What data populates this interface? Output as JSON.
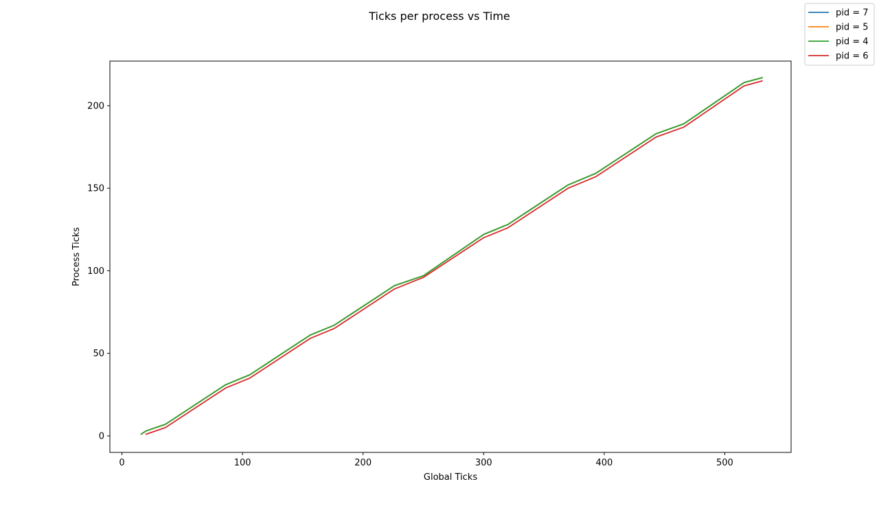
{
  "chart_data": {
    "type": "line",
    "title": "Ticks per process vs Time",
    "xlabel": "Global Ticks",
    "ylabel": "Process Ticks",
    "xlim": [
      -10,
      555
    ],
    "ylim": [
      -10,
      227
    ],
    "x_ticks": [
      0,
      100,
      200,
      300,
      400,
      500
    ],
    "y_ticks": [
      0,
      50,
      100,
      150,
      200
    ],
    "grid": false,
    "legend_position": "top-right outside",
    "series": [
      {
        "name": "pid = 7",
        "color": "#1f77b4",
        "x": [
          16,
          20,
          36,
          86,
          106,
          156,
          176,
          226,
          250,
          300,
          320,
          370,
          393,
          443,
          466,
          516,
          531
        ],
        "y": [
          1,
          3,
          7,
          31,
          37,
          61,
          67,
          91,
          97,
          122,
          128,
          152,
          159,
          183,
          189,
          214,
          217
        ]
      },
      {
        "name": "pid = 5",
        "color": "#ff7f0e",
        "x": [
          16,
          20,
          36,
          86,
          106,
          156,
          176,
          226,
          250,
          300,
          320,
          370,
          393,
          443,
          466,
          516,
          531
        ],
        "y": [
          1,
          3,
          7,
          31,
          37,
          61,
          67,
          91,
          97,
          122,
          128,
          152,
          159,
          183,
          189,
          214,
          217
        ]
      },
      {
        "name": "pid = 4",
        "color": "#2ca02c",
        "x": [
          16,
          20,
          36,
          86,
          106,
          156,
          176,
          226,
          250,
          300,
          320,
          370,
          393,
          443,
          466,
          516,
          531
        ],
        "y": [
          1,
          3,
          7,
          31,
          37,
          61,
          67,
          91,
          97,
          122,
          128,
          152,
          159,
          183,
          189,
          214,
          217
        ]
      },
      {
        "name": "pid = 6",
        "color": "#d62728",
        "x": [
          20,
          36,
          86,
          106,
          156,
          176,
          226,
          250,
          300,
          320,
          370,
          393,
          443,
          466,
          516,
          531
        ],
        "y": [
          1,
          5,
          29,
          35,
          59,
          65,
          89,
          96,
          120,
          126,
          150,
          157,
          181,
          187,
          212,
          215
        ]
      }
    ]
  }
}
